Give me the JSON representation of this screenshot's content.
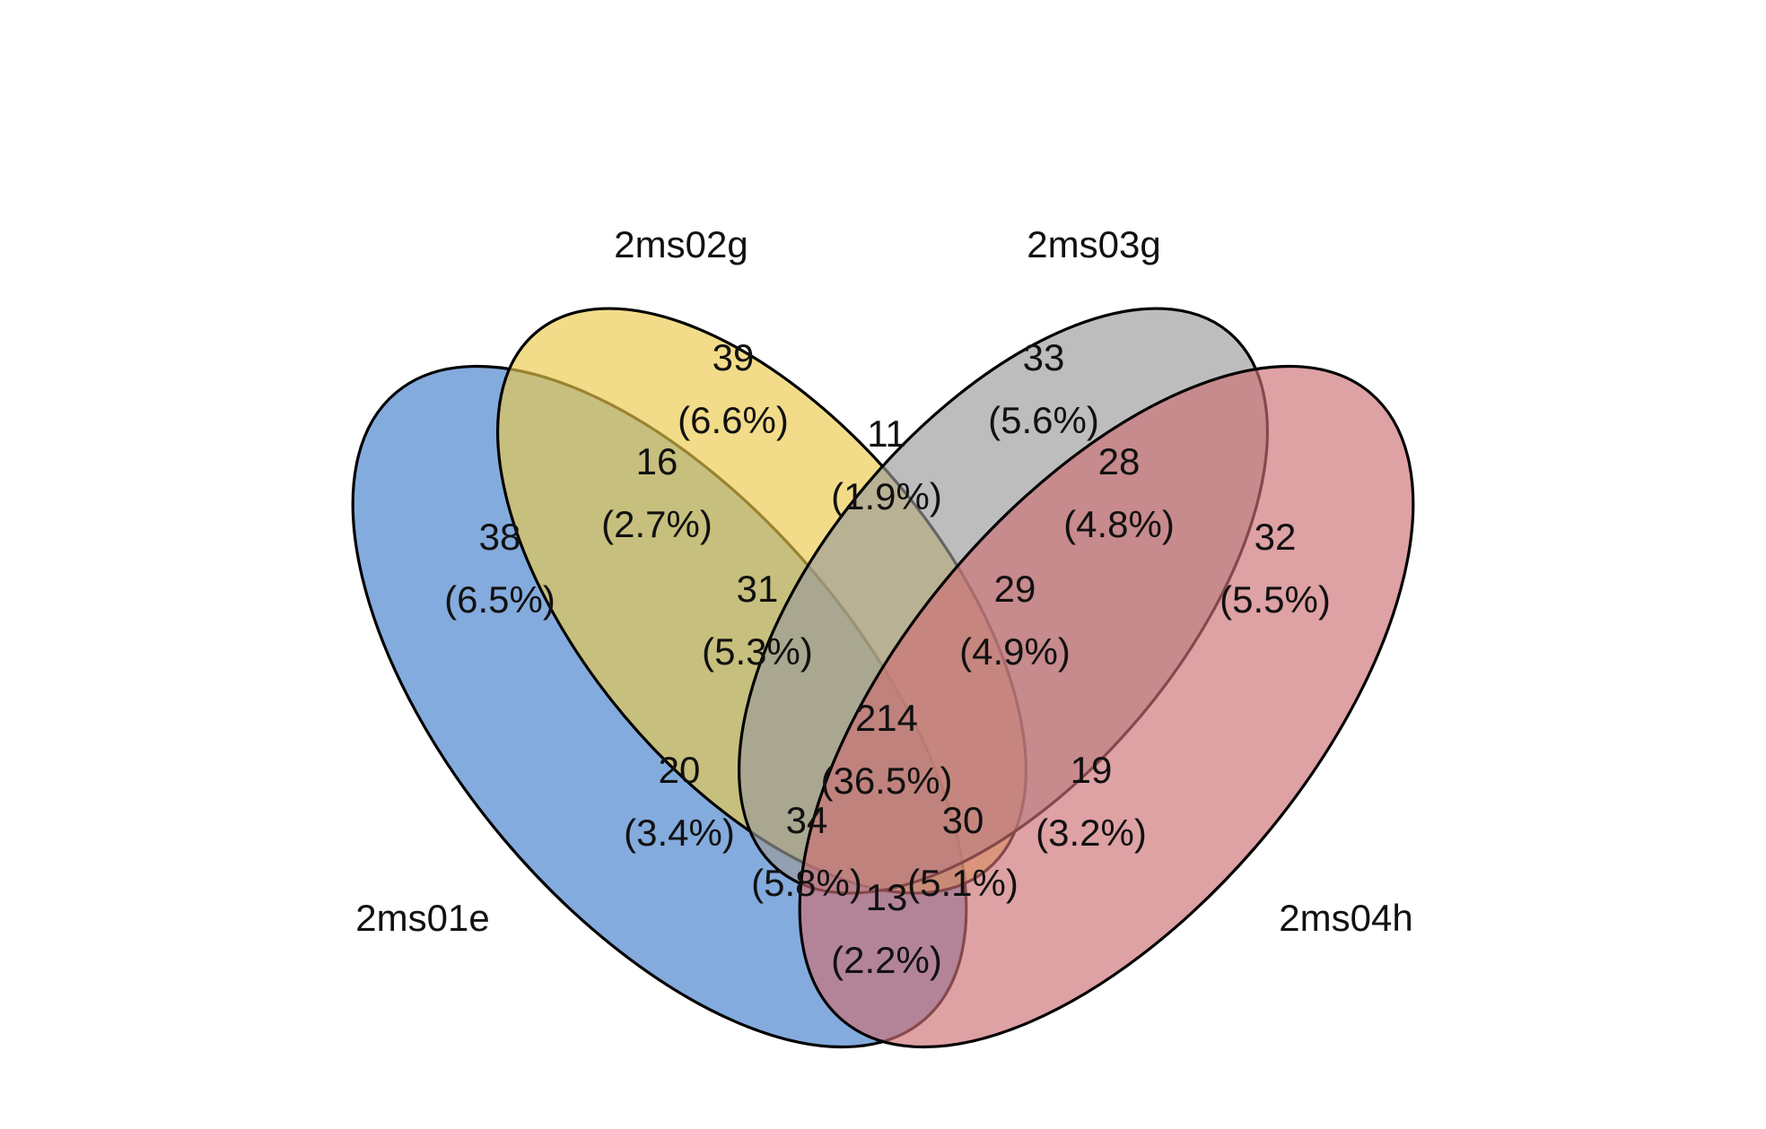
{
  "chart_data": {
    "type": "venn",
    "sets": [
      {
        "name": "2ms01e",
        "color": "#5b8fd1"
      },
      {
        "name": "2ms02g",
        "color": "#ebc94a"
      },
      {
        "name": "2ms03g",
        "color": "#9a9a9a"
      },
      {
        "name": "2ms04h",
        "color": "#cc6f73"
      }
    ],
    "regions": [
      {
        "sets": [
          "2ms01e"
        ],
        "count": "38",
        "pct": "(6.5%)"
      },
      {
        "sets": [
          "2ms02g"
        ],
        "count": "39",
        "pct": "(6.6%)"
      },
      {
        "sets": [
          "2ms03g"
        ],
        "count": "33",
        "pct": "(5.6%)"
      },
      {
        "sets": [
          "2ms04h"
        ],
        "count": "32",
        "pct": "(5.5%)"
      },
      {
        "sets": [
          "2ms01e",
          "2ms02g"
        ],
        "count": "16",
        "pct": "(2.7%)"
      },
      {
        "sets": [
          "2ms02g",
          "2ms03g"
        ],
        "count": "11",
        "pct": "(1.9%)"
      },
      {
        "sets": [
          "2ms03g",
          "2ms04h"
        ],
        "count": "28",
        "pct": "(4.8%)"
      },
      {
        "sets": [
          "2ms01e",
          "2ms02g",
          "2ms03g"
        ],
        "count": "31",
        "pct": "(5.3%)"
      },
      {
        "sets": [
          "2ms02g",
          "2ms03g",
          "2ms04h"
        ],
        "count": "29",
        "pct": "(4.9%)"
      },
      {
        "sets": [
          "2ms01e",
          "2ms02g",
          "2ms03g",
          "2ms04h"
        ],
        "count": "214",
        "pct": "(36.5%)"
      },
      {
        "sets": [
          "2ms01e",
          "2ms03g"
        ],
        "count": "20",
        "pct": "(3.4%)"
      },
      {
        "sets": [
          "2ms02g",
          "2ms04h"
        ],
        "count": "19",
        "pct": "(3.2%)"
      },
      {
        "sets": [
          "2ms01e",
          "2ms03g",
          "2ms04h"
        ],
        "count": "34",
        "pct": "(5.8%)"
      },
      {
        "sets": [
          "2ms01e",
          "2ms02g",
          "2ms04h"
        ],
        "count": "30",
        "pct": "(5.1%)"
      },
      {
        "sets": [
          "2ms01e",
          "2ms04h"
        ],
        "count": "13",
        "pct": "(2.2%)"
      }
    ]
  }
}
